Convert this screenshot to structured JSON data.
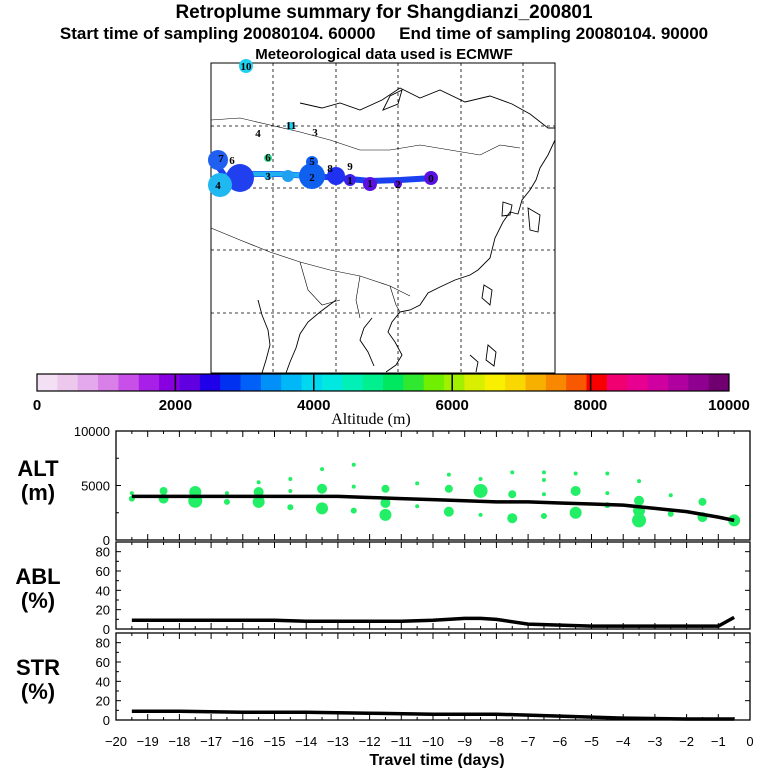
{
  "header": {
    "title": "Retroplume summary for Shangdianzi_200801",
    "sampling_start_label": "Start time of sampling 20080104. 60000",
    "sampling_end_label": "End time of sampling 20080104. 90000",
    "met_label": "Meteorological data used is ECMWF"
  },
  "map": {
    "cluster_labels": [
      "0",
      "1",
      "1",
      "2",
      "2",
      "3",
      "3",
      "4",
      "4",
      "5",
      "6",
      "6",
      "7",
      "8",
      "9",
      "10",
      "11"
    ]
  },
  "colorbar": {
    "label": "Altitude (m)",
    "ticks": [
      0,
      2000,
      4000,
      6000,
      8000,
      10000
    ],
    "colors": [
      "#f4e0f4",
      "#ecc8ec",
      "#e4a8ec",
      "#d880e8",
      "#c850e8",
      "#a820e8",
      "#8800e0",
      "#6000e0",
      "#2000e8",
      "#0030f0",
      "#0060f8",
      "#0090f8",
      "#00b8f8",
      "#00d8f0",
      "#00e8e0",
      "#00f0b8",
      "#00f090",
      "#00e860",
      "#30e830",
      "#70f000",
      "#a0f000",
      "#d8f000",
      "#f8f000",
      "#f8d800",
      "#f8b000",
      "#f88800",
      "#f85800",
      "#f80000",
      "#f00070",
      "#e80090",
      "#d000a0",
      "#b000a0",
      "#900090",
      "#700070"
    ]
  },
  "chart_data": [
    {
      "type": "line",
      "name": "ALT",
      "ylabel": "ALT\n(m)",
      "ylabel_line1": "ALT",
      "ylabel_line2": "(m)",
      "ylim": [
        0,
        10000
      ],
      "yticks": [
        0,
        5000,
        10000
      ],
      "x": [
        -19.5,
        -19,
        -18,
        -17,
        -16,
        -15,
        -14,
        -13,
        -12,
        -11,
        -10,
        -9,
        -8,
        -7,
        -6,
        -5,
        -4,
        -3,
        -2,
        -1,
        -0.5
      ],
      "values": [
        4000,
        4000,
        4000,
        4000,
        4000,
        4000,
        4000,
        4000,
        3900,
        3800,
        3700,
        3600,
        3500,
        3500,
        3400,
        3300,
        3200,
        2900,
        2600,
        2100,
        1800
      ],
      "plume_points": [
        {
          "x": -19.5,
          "y": 4300
        },
        {
          "x": -19.5,
          "y": 3800
        },
        {
          "x": -18.5,
          "y": 4500
        },
        {
          "x": -18.5,
          "y": 3800
        },
        {
          "x": -17.5,
          "y": 4400
        },
        {
          "x": -17.5,
          "y": 3600
        },
        {
          "x": -16.5,
          "y": 4300
        },
        {
          "x": -16.5,
          "y": 3500
        },
        {
          "x": -15.5,
          "y": 5300
        },
        {
          "x": -15.5,
          "y": 4400
        },
        {
          "x": -15.5,
          "y": 3500
        },
        {
          "x": -14.5,
          "y": 5600
        },
        {
          "x": -14.5,
          "y": 4500
        },
        {
          "x": -14.5,
          "y": 3000
        },
        {
          "x": -13.5,
          "y": 6500
        },
        {
          "x": -13.5,
          "y": 4700
        },
        {
          "x": -13.5,
          "y": 2900
        },
        {
          "x": -12.5,
          "y": 6900
        },
        {
          "x": -12.5,
          "y": 4900
        },
        {
          "x": -12.5,
          "y": 2700
        },
        {
          "x": -11.5,
          "y": 4700
        },
        {
          "x": -11.5,
          "y": 3400
        },
        {
          "x": -11.5,
          "y": 2300
        },
        {
          "x": -10.5,
          "y": 5200
        },
        {
          "x": -10.5,
          "y": 3100
        },
        {
          "x": -9.5,
          "y": 6000
        },
        {
          "x": -9.5,
          "y": 4700
        },
        {
          "x": -9.5,
          "y": 2600
        },
        {
          "x": -8.5,
          "y": 5600
        },
        {
          "x": -8.5,
          "y": 4500
        },
        {
          "x": -8.5,
          "y": 2300
        },
        {
          "x": -7.5,
          "y": 6200
        },
        {
          "x": -7.5,
          "y": 4200
        },
        {
          "x": -7.5,
          "y": 2000
        },
        {
          "x": -6.5,
          "y": 6200
        },
        {
          "x": -6.5,
          "y": 5500
        },
        {
          "x": -6.5,
          "y": 4200
        },
        {
          "x": -6.5,
          "y": 2200
        },
        {
          "x": -5.5,
          "y": 6100
        },
        {
          "x": -5.5,
          "y": 4500
        },
        {
          "x": -5.5,
          "y": 2500
        },
        {
          "x": -4.5,
          "y": 6100
        },
        {
          "x": -4.5,
          "y": 4300
        },
        {
          "x": -4.5,
          "y": 3200
        },
        {
          "x": -3.5,
          "y": 5400
        },
        {
          "x": -3.5,
          "y": 3600
        },
        {
          "x": -3.5,
          "y": 2700
        },
        {
          "x": -3.5,
          "y": 1800
        },
        {
          "x": -2.5,
          "y": 4100
        },
        {
          "x": -2.5,
          "y": 2400
        },
        {
          "x": -1.5,
          "y": 3500
        },
        {
          "x": -1.5,
          "y": 2100
        },
        {
          "x": -0.5,
          "y": 1800
        }
      ]
    },
    {
      "type": "line",
      "name": "ABL",
      "ylabel_line1": "ABL",
      "ylabel_line2": "(%)",
      "ylim": [
        0,
        90
      ],
      "yticks": [
        0,
        20,
        40,
        60,
        80
      ],
      "x": [
        -19.5,
        -18,
        -16,
        -15,
        -14,
        -13,
        -12,
        -11,
        -10,
        -9,
        -8.5,
        -8,
        -7,
        -6,
        -5,
        -4,
        -3,
        -2,
        -1,
        -0.5
      ],
      "values": [
        9,
        9,
        9,
        9,
        8,
        8,
        8,
        8,
        9,
        11,
        11,
        10,
        5,
        4,
        3,
        3,
        3,
        3,
        3,
        12
      ]
    },
    {
      "type": "line",
      "name": "STR",
      "ylabel_line1": "STR",
      "ylabel_line2": "(%)",
      "ylim": [
        0,
        90
      ],
      "yticks": [
        0,
        20,
        40,
        60,
        80
      ],
      "x": [
        -19.5,
        -18,
        -16,
        -14,
        -12,
        -10,
        -8,
        -6,
        -4,
        -2,
        -0.5
      ],
      "values": [
        9,
        9,
        8,
        8,
        7,
        6,
        6,
        4,
        2,
        1,
        1
      ],
      "xlabel": "Travel time (days)",
      "xlim": [
        -20,
        0
      ],
      "xticks": [
        -20,
        -19,
        -18,
        -17,
        -16,
        -15,
        -14,
        -13,
        -12,
        -11,
        -10,
        -9,
        -8,
        -7,
        -6,
        -5,
        -4,
        -3,
        -2,
        -1,
        0
      ]
    }
  ]
}
